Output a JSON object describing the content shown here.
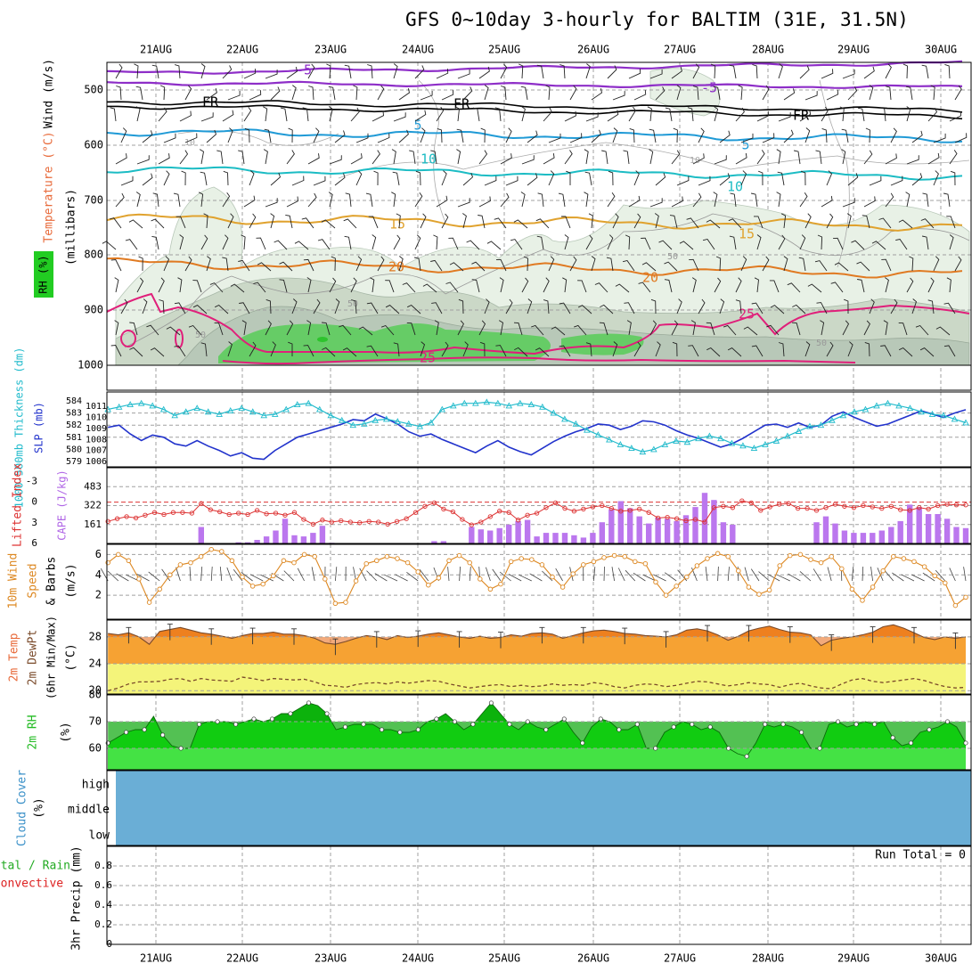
{
  "title": "GFS 0~10day 3-hourly for BALTIM (31E, 31.5N)",
  "dates": [
    "21AUG",
    "22AUG",
    "23AUG",
    "24AUG",
    "25AUG",
    "26AUG",
    "27AUG",
    "28AUG",
    "29AUG",
    "30AUG"
  ],
  "colors": {
    "temperature_label": "#ff3030",
    "wind_label": "#000000",
    "rh_green": "#22cc22",
    "cape": "#bb77ee",
    "lifted": "#dd3333",
    "speed": "#dd8822",
    "slp": "#2233cc",
    "thick": "#22bbcc",
    "cloud": "#6aaed6",
    "temp_fill": "#f6a233",
    "dewpt_fill": "#f4f47a",
    "rh2m": "#11cc11"
  },
  "panels": {
    "upper": {
      "ylabel_wind": "Wind (m/s)",
      "ylabel_temp": "Temperature (°C)",
      "ylabel_mb": "(millibars)",
      "rh_label": "RH (%)",
      "yticks": [
        "500",
        "600",
        "700",
        "800",
        "900",
        "1000"
      ],
      "contour_labels": [
        "-5",
        "-5",
        "FR",
        "FR",
        "FR",
        "5",
        "5",
        "10",
        "10",
        "15",
        "15",
        "20",
        "20",
        "25",
        "25",
        "10",
        "10",
        "50",
        "50",
        "50",
        "50"
      ]
    },
    "thick": {
      "ylabel_thick": "1000-500mb Thickness (dm)",
      "ylabel_slp": "SLP (mb)",
      "yticks_left": [
        "584",
        "583",
        "582",
        "581",
        "580",
        "579"
      ],
      "yticks_right": [
        "1011",
        "1010",
        "1009",
        "1008",
        "1007",
        "1006"
      ]
    },
    "cape": {
      "ylabel_li": "Lifted Index",
      "ylabel_cape": "CAPE (J/kg)",
      "yticks_left": [
        "-3",
        "0",
        "3",
        "6"
      ],
      "yticks_right": [
        "483",
        "322",
        "161"
      ]
    },
    "wind10": {
      "ylabel": "10m Wind Speed & Barbs",
      "unit": "(m/s)",
      "yticks": [
        "6",
        "4",
        "2"
      ]
    },
    "temp2m": {
      "ylabel": "2m Temp 2m DewPt (6hr Min/Max)",
      "unit": "(°C)",
      "yticks": [
        "28",
        "24",
        "20"
      ]
    },
    "rh2m": {
      "ylabel": "2m RH",
      "unit": "(%)",
      "yticks": [
        "80",
        "70",
        "60"
      ]
    },
    "cloud": {
      "ylabel": "Cloud Cover",
      "unit": "(%)",
      "levels": [
        "high",
        "middle",
        "low"
      ]
    },
    "precip": {
      "ylabel_total": "Total / Rain",
      "ylabel_conv": "Convective",
      "unit": "3hr Precip (mm)",
      "yticks": [
        "0.8",
        "0.6",
        "0.4",
        "0.2",
        "0"
      ],
      "run_total": "Run Total = 0"
    }
  },
  "chart_data": [
    {
      "type": "line",
      "title": "GFS 0~10day 3-hourly for BALTIM (31E, 31.5N)",
      "panel": "thickness_slp",
      "series": [
        {
          "name": "1000-500mb Thickness (dm)",
          "values": [
            583.3,
            583.5,
            583.7,
            583.8,
            583.6,
            583.3,
            582.8,
            583.1,
            583.4,
            583.1,
            582.9,
            583.2,
            583.4,
            583.1,
            582.8,
            582.9,
            583.3,
            583.7,
            583.8,
            583.3,
            582.8,
            582.4,
            582.0,
            582.1,
            582.4,
            582.5,
            582.3,
            582.1,
            581.9,
            582.2,
            583.3,
            583.6,
            583.8,
            583.8,
            583.9,
            583.8,
            583.6,
            583.8,
            583.7,
            583.5,
            583.0,
            582.5,
            582.1,
            581.6,
            581.2,
            580.8,
            580.4,
            580.1,
            579.8,
            580.0,
            580.4,
            580.7,
            580.6,
            580.9,
            581.1,
            580.9,
            580.5,
            580.3,
            580.1,
            580.4,
            580.7,
            581.1,
            581.5,
            581.9,
            582.0,
            582.4,
            582.8,
            583.1,
            583.3,
            583.6,
            583.8,
            583.6,
            583.4,
            583.1,
            582.9,
            582.8,
            582.5,
            582.2
          ]
        },
        {
          "name": "SLP (mb)",
          "values": [
            1009.1,
            1009.3,
            1008.5,
            1007.9,
            1008.4,
            1008.2,
            1007.6,
            1007.4,
            1007.9,
            1007.4,
            1007.0,
            1006.5,
            1006.8,
            1006.3,
            1006.2,
            1007.0,
            1007.6,
            1008.2,
            1008.5,
            1008.8,
            1009.1,
            1009.4,
            1009.8,
            1009.7,
            1010.3,
            1009.9,
            1009.4,
            1008.7,
            1008.3,
            1008.5,
            1008.0,
            1007.6,
            1007.2,
            1006.8,
            1007.4,
            1007.9,
            1007.3,
            1006.9,
            1006.6,
            1007.2,
            1007.8,
            1008.3,
            1008.7,
            1009.0,
            1009.4,
            1009.3,
            1008.9,
            1009.2,
            1009.7,
            1009.6,
            1009.3,
            1008.8,
            1008.4,
            1008.1,
            1007.7,
            1007.3,
            1007.6,
            1008.1,
            1008.7,
            1009.3,
            1009.4,
            1009.1,
            1009.5,
            1009.1,
            1009.3,
            1010.1,
            1010.5,
            1010.0,
            1009.6,
            1009.2,
            1009.4,
            1009.8,
            1010.2,
            1010.6,
            1010.3,
            1010.0,
            1010.4,
            1010.7
          ]
        }
      ],
      "ylim_left": [
        579,
        584
      ],
      "ylim_right": [
        1006,
        1011.5
      ]
    },
    {
      "type": "bar",
      "panel": "cape_lifted_index",
      "series": [
        {
          "name": "CAPE (J/kg)",
          "values": [
            0,
            0,
            0,
            0,
            0,
            0,
            0,
            0,
            0,
            0,
            140,
            0,
            0,
            0,
            10,
            10,
            30,
            60,
            110,
            210,
            70,
            60,
            90,
            150,
            5,
            0,
            0,
            0,
            0,
            0,
            0,
            0,
            0,
            0,
            0,
            20,
            20,
            0,
            0,
            140,
            120,
            110,
            130,
            160,
            190,
            200,
            60,
            90,
            90,
            90,
            70,
            50,
            90,
            180,
            290,
            360,
            300,
            230,
            170,
            220,
            210,
            190,
            240,
            310,
            430,
            370,
            180,
            160,
            0,
            0,
            0,
            0,
            0,
            0,
            0,
            0,
            180,
            230,
            170,
            110,
            90,
            90,
            90,
            110,
            140,
            190,
            330,
            310,
            250,
            250,
            210,
            140,
            130
          ]
        },
        {
          "name": "Lifted Index",
          "values": [
            2.8,
            2.4,
            2.1,
            2.3,
            1.9,
            1.5,
            1.8,
            1.5,
            1.5,
            1.6,
            0.2,
            1.1,
            1.4,
            1.8,
            1.6,
            1.8,
            1.2,
            1.7,
            1.6,
            1.9,
            1.5,
            2.5,
            3.2,
            2.6,
            2.9,
            2.7,
            2.9,
            3.0,
            2.8,
            2.9,
            3.2,
            2.8,
            2.4,
            1.5,
            0.6,
            0.1,
            1.0,
            1.4,
            2.5,
            3.3,
            2.9,
            2.1,
            1.3,
            1.5,
            2.6,
            1.9,
            1.6,
            0.8,
            0.1,
            0.9,
            1.3,
            1.0,
            0.7,
            0.5,
            0.9,
            1.3,
            1.2,
            1.0,
            1.5,
            2.3,
            2.2,
            2.4,
            2.7,
            2.5,
            2.9,
            0.8,
            0.6,
            0.8,
            -0.2,
            0.1,
            1.2,
            0.7,
            0.3,
            0.2,
            0.9,
            0.9,
            1.2,
            0.8,
            0.3,
            0.6,
            0.8,
            0.5,
            0.7,
            0.9,
            0.6,
            1.1,
            1.2,
            0.8,
            1.0,
            0.5,
            0.3,
            0.4,
            0.4
          ]
        }
      ],
      "ylim_cape": [
        0,
        644
      ],
      "ylim_lifted": [
        6,
        -5
      ]
    },
    {
      "type": "line",
      "panel": "wind_10m",
      "series": [
        {
          "name": "10m Wind Speed (m/s)",
          "values": [
            5.2,
            6.0,
            5.4,
            3.6,
            1.3,
            2.6,
            4.0,
            5.0,
            5.2,
            5.8,
            6.5,
            6.3,
            5.4,
            3.8,
            2.9,
            3.1,
            3.9,
            5.4,
            5.2,
            6.0,
            5.8,
            3.6,
            1.2,
            1.3,
            3.4,
            5.1,
            5.4,
            5.8,
            5.6,
            5.2,
            4.3,
            3.0,
            3.7,
            5.4,
            5.9,
            5.2,
            3.6,
            2.6,
            3.1,
            5.3,
            5.6,
            5.5,
            5.0,
            3.8,
            2.8,
            4.1,
            5.0,
            5.3,
            5.7,
            5.9,
            5.8,
            5.3,
            5.1,
            3.3,
            2.0,
            2.9,
            3.8,
            4.9,
            5.6,
            6.1,
            5.8,
            4.4,
            2.8,
            2.1,
            2.5,
            4.9,
            5.9,
            6.0,
            5.5,
            5.2,
            5.8,
            4.6,
            2.6,
            1.5,
            2.8,
            4.4,
            5.8,
            5.6,
            5.3,
            4.8,
            3.9,
            3.2,
            1.0,
            1.8
          ]
        }
      ],
      "ylim": [
        0,
        7
      ]
    },
    {
      "type": "area",
      "panel": "temp_2m",
      "series": [
        {
          "name": "2m Temp (°C)",
          "values": [
            28.5,
            28.3,
            28.6,
            28.0,
            26.9,
            28.8,
            29.1,
            29.4,
            29.0,
            28.6,
            28.4,
            28.1,
            27.8,
            28.2,
            28.5,
            28.5,
            28.7,
            28.4,
            28.4,
            28.2,
            27.8,
            27.1,
            26.9,
            27.3,
            27.8,
            28.2,
            28.0,
            27.6,
            28.2,
            27.9,
            28.1,
            28.4,
            28.6,
            28.3,
            28.0,
            27.8,
            28.1,
            27.8,
            27.9,
            28.3,
            28.1,
            28.5,
            28.6,
            28.4,
            27.8,
            28.2,
            28.6,
            28.9,
            29.0,
            28.8,
            28.5,
            28.4,
            28.2,
            28.1,
            28.0,
            28.3,
            29.0,
            29.2,
            28.9,
            28.3,
            27.5,
            28.1,
            28.9,
            29.3,
            29.6,
            29.1,
            28.7,
            28.6,
            28.3,
            26.7,
            27.5,
            27.8,
            28.0,
            28.3,
            28.7,
            29.5,
            29.8,
            29.3,
            28.6,
            27.9,
            27.6,
            28.0,
            27.8,
            28.0
          ]
        },
        {
          "name": "2m DewPt (°C)",
          "values": [
            20.0,
            20.4,
            21.0,
            21.3,
            21.3,
            21.4,
            21.7,
            21.8,
            21.4,
            21.8,
            21.6,
            21.5,
            21.4,
            22.0,
            21.8,
            21.5,
            21.8,
            21.7,
            21.6,
            21.7,
            21.3,
            20.8,
            20.7,
            20.5,
            20.9,
            21.1,
            21.2,
            21.0,
            21.3,
            21.1,
            21.3,
            21.5,
            21.4,
            21.0,
            20.7,
            20.4,
            20.6,
            20.8,
            20.9,
            20.6,
            20.8,
            20.6,
            20.7,
            21.0,
            20.8,
            20.9,
            20.8,
            21.2,
            21.0,
            20.6,
            20.4,
            20.8,
            21.0,
            20.9,
            20.6,
            20.8,
            21.1,
            21.4,
            21.3,
            21.0,
            20.7,
            20.9,
            21.2,
            21.0,
            20.9,
            20.5,
            20.9,
            21.1,
            20.7,
            20.4,
            20.3,
            21.0,
            21.6,
            21.8,
            21.4,
            21.2,
            21.4,
            21.6,
            21.8,
            21.5,
            21.0,
            20.6,
            20.4,
            20.5
          ]
        }
      ],
      "ylim": [
        19.5,
        30.5
      ]
    },
    {
      "type": "area",
      "panel": "rh_2m",
      "series": [
        {
          "name": "2m RH (%)",
          "values": [
            62,
            64,
            66,
            67,
            67,
            72,
            65,
            61,
            60,
            60,
            69,
            70,
            70,
            70,
            69,
            70,
            71,
            70,
            71,
            73,
            73,
            75,
            77,
            76,
            73,
            67,
            68,
            69,
            69,
            69,
            67,
            67,
            66,
            66,
            67,
            70,
            71,
            73,
            70,
            67,
            69,
            73,
            77,
            73,
            69,
            67,
            70,
            68,
            67,
            69,
            71,
            66,
            62,
            68,
            71,
            70,
            67,
            67,
            69,
            60,
            60,
            66,
            68,
            70,
            69,
            67,
            68,
            66,
            60,
            58,
            57,
            62,
            69,
            68,
            69,
            68,
            66,
            60,
            60,
            69,
            70,
            68,
            69,
            70,
            69,
            70,
            64,
            61,
            62,
            66,
            67,
            68,
            70,
            68,
            62
          ]
        }
      ],
      "ylim": [
        52,
        80
      ]
    },
    {
      "type": "bar",
      "panel": "precip_3hr",
      "series": [
        {
          "name": "3hr Precip (mm)",
          "values": []
        }
      ],
      "ylim": [
        0,
        1.0
      ],
      "annotation": "Run Total = 0"
    }
  ]
}
